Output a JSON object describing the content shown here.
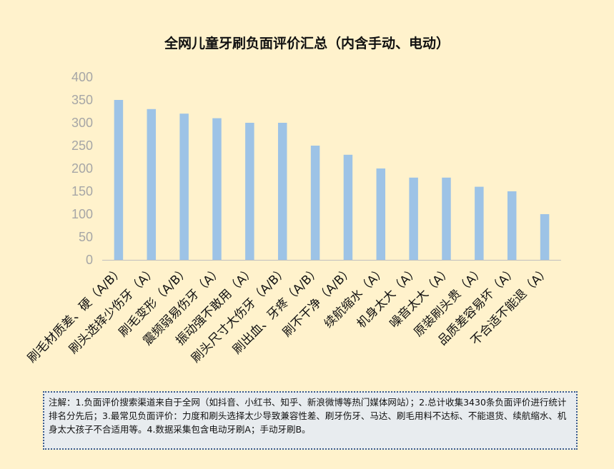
{
  "chart_data": {
    "type": "bar",
    "title": "全网儿童牙刷负面评价汇总（内含手动、电动）",
    "categories": [
      "刷毛材质差、硬（A/B）",
      "刷头选择少伤牙（A）",
      "刷毛变形（A/B）",
      "震频弱易伤牙（A）",
      "振动强不敢用（A）",
      "刷头尺寸大伤牙（A/B）",
      "刷出血、牙疼（A/B）",
      "刷不干净（A/B）",
      "续航缩水（A）",
      "机身太大（A）",
      "噪音太大（A）",
      "原装刷头贵（A）",
      "品质差容易坏（A）",
      "不合适不能退（A）"
    ],
    "values": [
      350,
      330,
      320,
      310,
      300,
      300,
      250,
      230,
      200,
      180,
      180,
      160,
      150,
      100
    ],
    "ylim": [
      0,
      400
    ],
    "yticks": [
      0,
      50,
      100,
      150,
      200,
      250,
      300,
      350,
      400
    ],
    "bar_color": "#9dc3e6",
    "grid": false,
    "xlabel": "",
    "ylabel": ""
  },
  "note": "注解：1.负面评价搜索渠道来自于全网（如抖音、小红书、知乎、新浪微博等热门媒体网站）；2.总计收集3430条负面评价进行统计排名分先后；3.最常见负面评价：力度和刷头选择太少导致兼容性差、刷牙伤牙、马达、刷毛用料不达标、不能退货、续航缩水、机身太大孩子不合适用等。4.数据采集包含电动牙刷A；手动牙刷B。"
}
